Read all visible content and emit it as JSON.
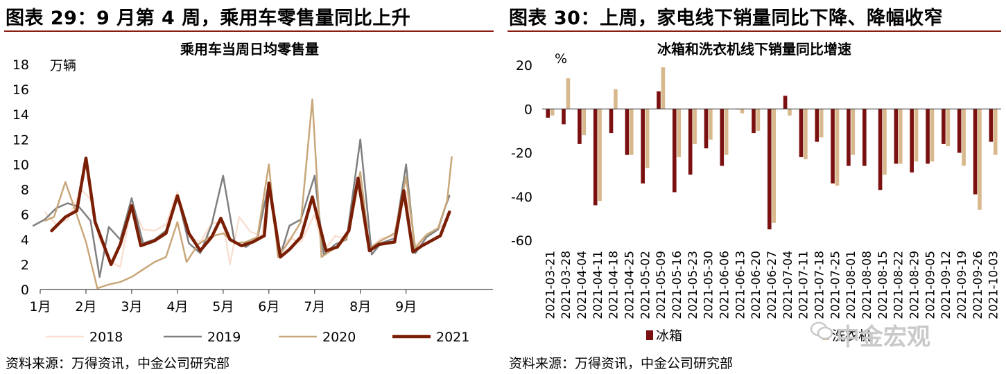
{
  "panels": {
    "left": {
      "heading": "图表 29：9 月第 4 周，乘用车零售量同比上升",
      "source": "资料来源：万得资讯，中金公司研究部"
    },
    "right": {
      "heading": "图表 30：上周，家电线下销量同比下降、降幅收窄",
      "source": "资料来源：万得资讯，中金公司研究部"
    }
  },
  "watermark": "中金宏观",
  "colors": {
    "rule": "#8a1c14",
    "s2018": "#f9e0d2",
    "s2019": "#7f7f7f",
    "s2020": "#c8a77a",
    "s2021": "#7a1f05",
    "fridge": "#7a1010",
    "washer": "#d8b98e"
  },
  "chart_data": [
    {
      "type": "line",
      "title": "乘用车当周日均零售量",
      "ylabel": "万辆",
      "ylim": [
        0,
        18
      ],
      "yticks": [
        0,
        2,
        4,
        6,
        8,
        10,
        12,
        14,
        16,
        18
      ],
      "xlim": [
        0,
        9.9
      ],
      "x_ticks": [
        {
          "x": 0,
          "label": "1月"
        },
        {
          "x": 1,
          "label": "2月"
        },
        {
          "x": 2,
          "label": "3月"
        },
        {
          "x": 3,
          "label": "4月"
        },
        {
          "x": 4,
          "label": "5月"
        },
        {
          "x": 5,
          "label": "6月"
        },
        {
          "x": 6,
          "label": "7月"
        },
        {
          "x": 7,
          "label": "8月"
        },
        {
          "x": 8,
          "label": "9月"
        }
      ],
      "legend_position": "bottom",
      "series": [
        {
          "name": "2018",
          "color": "#f9e0d2",
          "width": 2.5,
          "points": [
            [
              0.1,
              6.2
            ],
            [
              0.35,
              5.2
            ],
            [
              0.6,
              5.6
            ],
            [
              0.9,
              8.0
            ],
            [
              1.1,
              7.2
            ],
            [
              1.3,
              4.0
            ],
            [
              1.55,
              2.2
            ],
            [
              1.75,
              1.8
            ],
            [
              2.0,
              6.8
            ],
            [
              2.25,
              4.8
            ],
            [
              2.5,
              4.7
            ],
            [
              2.75,
              5.2
            ],
            [
              3.0,
              7.8
            ],
            [
              3.25,
              4.2
            ],
            [
              3.5,
              3.8
            ],
            [
              3.75,
              5.3
            ],
            [
              4.0,
              5.4
            ],
            [
              4.15,
              2.0
            ],
            [
              4.35,
              5.8
            ],
            [
              4.6,
              4.6
            ],
            [
              4.85,
              4.3
            ],
            [
              5.0,
              8.2
            ],
            [
              5.2,
              3.0
            ],
            [
              5.45,
              4.1
            ],
            [
              5.7,
              3.8
            ],
            [
              6.0,
              6.0
            ],
            [
              6.2,
              3.0
            ],
            [
              6.45,
              4.3
            ],
            [
              6.7,
              4.0
            ],
            [
              7.0,
              8.8
            ],
            [
              7.2,
              3.2
            ],
            [
              7.45,
              4.1
            ],
            [
              7.75,
              4.3
            ],
            [
              8.0,
              7.8
            ],
            [
              8.2,
              3.5
            ],
            [
              8.45,
              4.4
            ],
            [
              8.7,
              4.8
            ],
            [
              8.9,
              5.5
            ]
          ]
        },
        {
          "name": "2019",
          "color": "#7f7f7f",
          "width": 2.5,
          "points": [
            [
              -0.15,
              5.1
            ],
            [
              0.1,
              5.6
            ],
            [
              0.35,
              6.5
            ],
            [
              0.6,
              6.9
            ],
            [
              0.85,
              6.6
            ],
            [
              1.1,
              5.5
            ],
            [
              1.3,
              1.0
            ],
            [
              1.5,
              5.0
            ],
            [
              1.75,
              4.0
            ],
            [
              2.0,
              7.3
            ],
            [
              2.25,
              3.7
            ],
            [
              2.5,
              4.0
            ],
            [
              2.75,
              4.7
            ],
            [
              3.0,
              7.5
            ],
            [
              3.25,
              3.7
            ],
            [
              3.5,
              2.9
            ],
            [
              3.75,
              5.2
            ],
            [
              4.0,
              9.1
            ],
            [
              4.25,
              3.8
            ],
            [
              4.5,
              3.4
            ],
            [
              4.75,
              4.1
            ],
            [
              5.0,
              8.5
            ],
            [
              5.25,
              2.7
            ],
            [
              5.45,
              5.1
            ],
            [
              5.7,
              5.6
            ],
            [
              6.0,
              9.1
            ],
            [
              6.2,
              2.8
            ],
            [
              6.45,
              3.6
            ],
            [
              6.7,
              4.0
            ],
            [
              7.0,
              12.0
            ],
            [
              7.25,
              2.8
            ],
            [
              7.45,
              3.7
            ],
            [
              7.75,
              4.1
            ],
            [
              8.0,
              10.0
            ],
            [
              8.2,
              2.9
            ],
            [
              8.45,
              4.2
            ],
            [
              8.7,
              4.8
            ],
            [
              8.85,
              6.5
            ],
            [
              8.95,
              7.5
            ]
          ]
        },
        {
          "name": "2020",
          "color": "#c8a77a",
          "width": 2.5,
          "points": [
            [
              0.1,
              5.5
            ],
            [
              0.3,
              5.8
            ],
            [
              0.55,
              8.6
            ],
            [
              0.75,
              6.5
            ],
            [
              1.0,
              3.8
            ],
            [
              1.25,
              0.1
            ],
            [
              1.5,
              0.4
            ],
            [
              1.75,
              0.6
            ],
            [
              2.0,
              1.0
            ],
            [
              2.25,
              1.6
            ],
            [
              2.5,
              2.2
            ],
            [
              2.75,
              2.6
            ],
            [
              3.0,
              5.4
            ],
            [
              3.2,
              2.2
            ],
            [
              3.45,
              3.6
            ],
            [
              3.7,
              4.2
            ],
            [
              4.0,
              4.5
            ],
            [
              4.25,
              3.7
            ],
            [
              4.5,
              3.8
            ],
            [
              4.75,
              4.2
            ],
            [
              5.0,
              10.0
            ],
            [
              5.2,
              2.6
            ],
            [
              5.45,
              3.9
            ],
            [
              5.7,
              5.4
            ],
            [
              5.95,
              15.2
            ],
            [
              6.15,
              2.6
            ],
            [
              6.4,
              3.2
            ],
            [
              6.7,
              4.1
            ],
            [
              7.0,
              9.4
            ],
            [
              7.2,
              3.3
            ],
            [
              7.45,
              3.9
            ],
            [
              7.75,
              4.5
            ],
            [
              8.0,
              9.0
            ],
            [
              8.2,
              3.3
            ],
            [
              8.45,
              4.4
            ],
            [
              8.7,
              4.9
            ],
            [
              8.9,
              7.1
            ],
            [
              9.0,
              10.6
            ]
          ]
        },
        {
          "name": "2021",
          "color": "#7a1f05",
          "width": 4.5,
          "points": [
            [
              0.25,
              4.7
            ],
            [
              0.55,
              5.8
            ],
            [
              0.8,
              6.3
            ],
            [
              1.0,
              10.5
            ],
            [
              1.2,
              5.4
            ],
            [
              1.55,
              2.0
            ],
            [
              1.75,
              3.6
            ],
            [
              2.0,
              6.7
            ],
            [
              2.2,
              3.5
            ],
            [
              2.5,
              3.9
            ],
            [
              2.75,
              4.5
            ],
            [
              3.0,
              7.5
            ],
            [
              3.25,
              4.5
            ],
            [
              3.5,
              3.1
            ],
            [
              3.75,
              4.2
            ],
            [
              3.95,
              5.7
            ],
            [
              4.15,
              4.0
            ],
            [
              4.4,
              3.5
            ],
            [
              4.65,
              3.8
            ],
            [
              4.9,
              4.3
            ],
            [
              5.0,
              8.5
            ],
            [
              5.25,
              2.6
            ],
            [
              5.45,
              3.2
            ],
            [
              5.7,
              4.2
            ],
            [
              5.95,
              7.4
            ],
            [
              6.25,
              3.1
            ],
            [
              6.5,
              3.4
            ],
            [
              6.75,
              4.7
            ],
            [
              6.95,
              8.9
            ],
            [
              7.2,
              3.1
            ],
            [
              7.4,
              3.6
            ],
            [
              7.75,
              3.8
            ],
            [
              7.95,
              7.9
            ],
            [
              8.15,
              3.0
            ],
            [
              8.35,
              3.5
            ],
            [
              8.55,
              3.9
            ],
            [
              8.75,
              4.3
            ],
            [
              8.95,
              6.2
            ]
          ]
        }
      ]
    },
    {
      "type": "bar",
      "title": "冰箱和洗衣机线下销量同比增速",
      "ylabel": "%",
      "ylim": [
        -60,
        20
      ],
      "yticks": [
        20,
        0,
        -20,
        -40,
        -60
      ],
      "categories": [
        "2021-03-21",
        "2021-03-28",
        "2021-04-04",
        "2021-04-11",
        "2021-04-18",
        "2021-04-25",
        "2021-05-02",
        "2021-05-09",
        "2021-05-16",
        "2021-05-23",
        "2021-05-30",
        "2021-06-06",
        "2021-06-13",
        "2021-06-20",
        "2021-06-27",
        "2021-07-04",
        "2021-07-11",
        "2021-07-18",
        "2021-07-25",
        "2021-08-01",
        "2021-08-08",
        "2021-08-15",
        "2021-08-22",
        "2021-08-29",
        "2021-09-05",
        "2021-09-12",
        "2021-09-19",
        "2021-09-26",
        "2021-10-03"
      ],
      "legend_position": "bottom",
      "series": [
        {
          "name": "冰箱",
          "color": "#7a1010",
          "values": [
            -4,
            -7,
            -16,
            -44,
            -11,
            -21,
            -34,
            8,
            -38,
            -30,
            -18,
            -26,
            0,
            -11,
            -55,
            6,
            -22,
            -15,
            -34,
            -26,
            -26,
            -37,
            -25,
            -29,
            -25,
            -16,
            -20,
            -39,
            -15
          ]
        },
        {
          "name": "洗衣机",
          "color": "#d8b98e",
          "values": [
            -3,
            14,
            -12,
            -42,
            9,
            -21,
            -27,
            19,
            -22,
            -16,
            -14,
            -21,
            -2,
            -10,
            -52,
            -3,
            -23,
            -13,
            -35,
            -21,
            0,
            -30,
            -25,
            -24,
            -24,
            -17,
            -26,
            -46,
            -21
          ]
        }
      ]
    }
  ]
}
